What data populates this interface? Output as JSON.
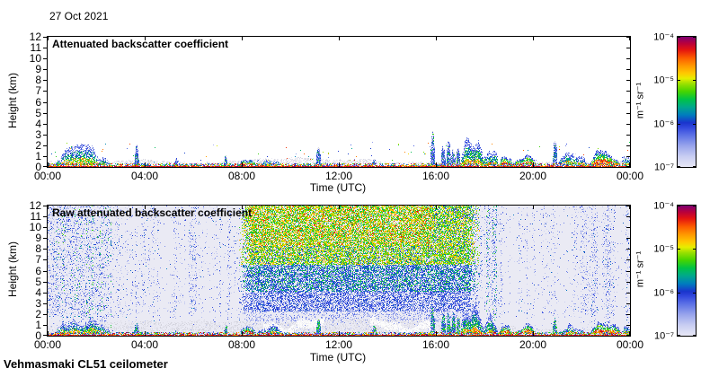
{
  "page": {
    "date_label": "27 Oct 2021",
    "footer_label": "Vehmasmaki CL51 ceilometer",
    "background": "#ffffff",
    "text_color": "#000000"
  },
  "chart_data": [
    {
      "id": "attenuated-backscatter",
      "type": "heatmap",
      "title": "Attenuated backscatter coefficient",
      "xlabel": "Time (UTC)",
      "ylabel": "Height (km)",
      "x_ticks": [
        "00:00",
        "04:00",
        "08:00",
        "12:00",
        "16:00",
        "20:00",
        "00:00"
      ],
      "x_range_hours": [
        0,
        24
      ],
      "y_ticks": [
        0,
        1,
        2,
        3,
        4,
        5,
        6,
        7,
        8,
        9,
        10,
        11,
        12
      ],
      "ylim_km": [
        0,
        12
      ],
      "grid": false,
      "background_color": "#ffffff",
      "colorbar": {
        "units": "m⁻¹ sr⁻¹",
        "scale": "log",
        "range": [
          "1e-7",
          "1e-4"
        ],
        "tick_labels": [
          "10⁻⁴",
          "10⁻⁵",
          "10⁻⁶",
          "10⁻⁷"
        ],
        "colormap": [
          [
            0.0,
            "#e8e8f6"
          ],
          [
            0.08,
            "#c9cef2"
          ],
          [
            0.16,
            "#9aa6ec"
          ],
          [
            0.24,
            "#5f74e6"
          ],
          [
            0.3,
            "#344ade"
          ],
          [
            0.34,
            "#1a34cd"
          ],
          [
            0.4,
            "#007dbe"
          ],
          [
            0.46,
            "#00a88c"
          ],
          [
            0.52,
            "#00c346"
          ],
          [
            0.58,
            "#46d400"
          ],
          [
            0.64,
            "#9ce000"
          ],
          [
            0.68,
            "#e6ee00"
          ],
          [
            0.72,
            "#ffc800"
          ],
          [
            0.78,
            "#ff9600"
          ],
          [
            0.84,
            "#fc5a00"
          ],
          [
            0.9,
            "#e41410"
          ],
          [
            0.95,
            "#b9003c"
          ],
          [
            1.0,
            "#7c0072"
          ]
        ]
      },
      "features": {
        "surface_layer": {
          "top_km": 0.3,
          "description": "continuous strong backscatter speckle (red/orange/green/blue) at 0-0.3 km across all 24 h"
        },
        "gray_haze": {
          "top_km_range": [
            0.3,
            0.9
          ],
          "description": "weak gray backscatter band just above the surface layer"
        },
        "plumes": [
          {
            "start_utc": 0.3,
            "end_utc": 2.6,
            "top_km": 1.6,
            "kind": "aerosol"
          },
          {
            "start_utc": 3.55,
            "end_utc": 3.75,
            "top_km": 2.0,
            "kind": "spike"
          },
          {
            "start_utc": 5.2,
            "end_utc": 5.35,
            "top_km": 0.7,
            "kind": "spike"
          },
          {
            "start_utc": 7.25,
            "end_utc": 7.4,
            "top_km": 1.1,
            "kind": "spike"
          },
          {
            "start_utc": 7.9,
            "end_utc": 8.6,
            "top_km": 1.0,
            "kind": "cloud"
          },
          {
            "start_utc": 8.6,
            "end_utc": 9.7,
            "top_km": 0.8,
            "kind": "aerosol"
          },
          {
            "start_utc": 11.05,
            "end_utc": 11.25,
            "top_km": 2.1,
            "kind": "spike"
          },
          {
            "start_utc": 13.35,
            "end_utc": 13.55,
            "top_km": 1.1,
            "kind": "spike"
          },
          {
            "start_utc": 15.75,
            "end_utc": 15.95,
            "top_km": 3.1,
            "kind": "spike"
          },
          {
            "start_utc": 16.2,
            "end_utc": 16.38,
            "top_km": 2.3,
            "kind": "spike"
          },
          {
            "start_utc": 16.42,
            "end_utc": 16.6,
            "top_km": 2.5,
            "kind": "spike"
          },
          {
            "start_utc": 16.62,
            "end_utc": 16.8,
            "top_km": 2.6,
            "kind": "spike"
          },
          {
            "start_utc": 16.82,
            "end_utc": 17.0,
            "top_km": 2.4,
            "kind": "spike"
          },
          {
            "start_utc": 17.0,
            "end_utc": 17.95,
            "top_km": 3.2,
            "kind": "plume"
          },
          {
            "start_utc": 17.95,
            "end_utc": 18.55,
            "top_km": 1.9,
            "kind": "plume"
          },
          {
            "start_utc": 18.6,
            "end_utc": 19.15,
            "top_km": 1.0,
            "kind": "cloud"
          },
          {
            "start_utc": 19.2,
            "end_utc": 20.1,
            "top_km": 0.9,
            "kind": "cloud"
          },
          {
            "start_utc": 20.8,
            "end_utc": 21.0,
            "top_km": 2.4,
            "kind": "spike"
          },
          {
            "start_utc": 21.0,
            "end_utc": 22.2,
            "top_km": 1.1,
            "kind": "aerosol"
          },
          {
            "start_utc": 22.35,
            "end_utc": 23.6,
            "top_km": 1.5,
            "kind": "cloud"
          },
          {
            "start_utc": 23.65,
            "end_utc": 24.0,
            "top_km": 1.6,
            "kind": "aerosol"
          }
        ]
      }
    },
    {
      "id": "raw-attenuated-backscatter",
      "type": "heatmap",
      "title": "Raw attenuated backscatter coefficient",
      "xlabel": "Time (UTC)",
      "ylabel": "Height (km)",
      "x_ticks": [
        "00:00",
        "04:00",
        "08:00",
        "12:00",
        "16:00",
        "20:00",
        "00:00"
      ],
      "x_range_hours": [
        0,
        24
      ],
      "y_ticks": [
        0,
        1,
        2,
        3,
        4,
        5,
        6,
        7,
        8,
        9,
        10,
        11,
        12
      ],
      "ylim_km": [
        0,
        12
      ],
      "grid": false,
      "background_color": "#eaeaf4",
      "colorbar": {
        "units": "m⁻¹ sr⁻¹",
        "scale": "log",
        "range": [
          "1e-7",
          "1e-4"
        ],
        "tick_labels": [
          "10⁻⁴",
          "10⁻⁵",
          "10⁻⁶",
          "10⁻⁷"
        ],
        "colormap": [
          [
            0.0,
            "#e8e8f6"
          ],
          [
            0.08,
            "#c9cef2"
          ],
          [
            0.16,
            "#9aa6ec"
          ],
          [
            0.24,
            "#5f74e6"
          ],
          [
            0.3,
            "#344ade"
          ],
          [
            0.34,
            "#1a34cd"
          ],
          [
            0.4,
            "#007dbe"
          ],
          [
            0.46,
            "#00a88c"
          ],
          [
            0.52,
            "#00c346"
          ],
          [
            0.58,
            "#46d400"
          ],
          [
            0.64,
            "#9ce000"
          ],
          [
            0.68,
            "#e6ee00"
          ],
          [
            0.72,
            "#ffc800"
          ],
          [
            0.78,
            "#ff9600"
          ],
          [
            0.84,
            "#fc5a00"
          ],
          [
            0.9,
            "#e41410"
          ],
          [
            0.95,
            "#b9003c"
          ],
          [
            1.0,
            "#7c0072"
          ]
        ]
      },
      "features": {
        "daytime_noise": {
          "start_utc": 7.9,
          "end_utc": 17.8,
          "description": "dense solar background speckle: green/yellow aloft with orange tinge above ~8 km near midday, blue below ~4 km, thinning near 1.5-2 km"
        },
        "night_noise": {
          "description": "sparse lavender/blue speckle with vertical blue streaks; densest blue-green streaking 00:00-02:30"
        },
        "dense_streak_bands_utc": [
          [
            0.0,
            2.5
          ],
          [
            18.05,
            18.2
          ],
          [
            18.3,
            18.5
          ],
          [
            22.4,
            22.65
          ],
          [
            23.0,
            23.2
          ]
        ],
        "white_cloud_band_utc": [
          [
            8.9,
            11.4
          ],
          [
            13.3,
            15.8
          ]
        ],
        "low_structure": "same boundary-layer aerosol and low-cloud structures as the attenuated panel"
      }
    }
  ]
}
